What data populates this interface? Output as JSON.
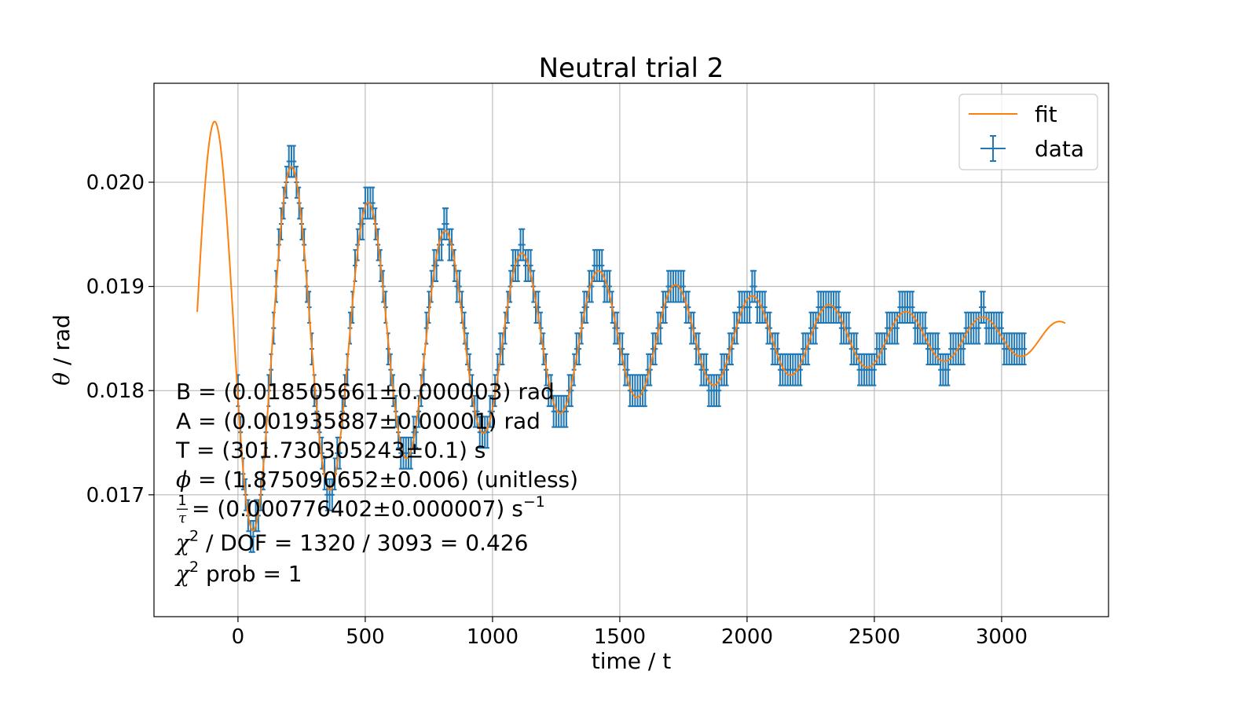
{
  "chart_data": {
    "type": "scatter",
    "title": "Neutral trial 2",
    "xlabel": "time / t",
    "ylabel_symbol": "θ",
    "ylabel_unit": " / rad",
    "xlim": [
      -330,
      3420
    ],
    "ylim": [
      0.01583,
      0.02095
    ],
    "xticks": [
      0,
      500,
      1000,
      1500,
      2000,
      2500,
      3000
    ],
    "yticks": [
      0.017,
      0.018,
      0.019,
      0.02
    ],
    "ytick_labels": [
      "0.017",
      "0.018",
      "0.019",
      "0.020"
    ],
    "grid": true,
    "legend": {
      "placement": "upper right",
      "entries": [
        "fit",
        "data"
      ]
    },
    "colors": {
      "data": "#1f77b4",
      "fit": "#ff7f0e",
      "grid": "#b0b0b0"
    },
    "series": [
      {
        "name": "fit",
        "kind": "line",
        "model": "B + A*exp(-t/tau)*cos(2*pi*t/T + phi)",
        "x_range": [
          -160,
          3250
        ],
        "params": {
          "B": 0.018505661,
          "A": 0.001935887,
          "T": 301.730305243,
          "phi": 1.875090652,
          "inv_tau": 0.000776402
        }
      },
      {
        "name": "data",
        "kind": "errorbar",
        "x_range": [
          0,
          3090
        ],
        "x_step": 10,
        "y_err": 0.00015,
        "y_quantum": 0.0002,
        "note": "measurements follow the fitted oscillation, quantized in steps of ~0.0002 rad"
      }
    ],
    "annotations": [
      {
        "id": "B",
        "pre": "B = (0.018505661±0.000003) rad"
      },
      {
        "id": "A",
        "pre": "A = (0.001935887±0.00001) rad"
      },
      {
        "id": "T",
        "pre": "T = (301.730305243±0.1) s"
      },
      {
        "id": "phi",
        "symbol": "ϕ",
        "post": " = (1.875090652±0.006) (unitless)"
      },
      {
        "id": "tau",
        "frac_num": "1",
        "frac_den": "τ",
        "post": " = (0.000776402±0.000007) s",
        "sup": "−1"
      },
      {
        "id": "chi",
        "symbol": "χ",
        "sup": "2",
        "post": " / DOF = 1320 / 3093 = 0.426"
      },
      {
        "id": "prob",
        "symbol": "χ",
        "sup": "2",
        "post": " prob = 1"
      }
    ]
  }
}
